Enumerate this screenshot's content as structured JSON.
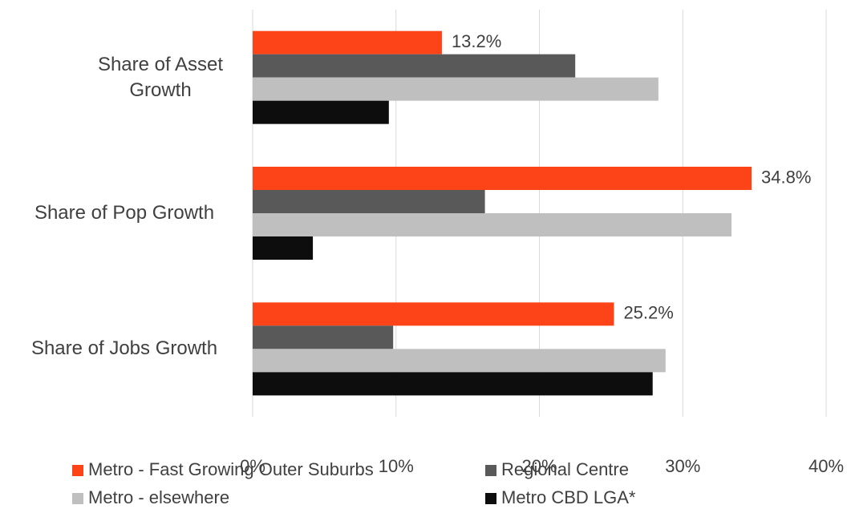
{
  "chart_data": {
    "type": "hbar",
    "categories": [
      "Share of Asset Growth",
      "Share of Pop Growth",
      "Share of Jobs Growth"
    ],
    "series": [
      {
        "name": "Metro - Fast Growing Outer Suburbs",
        "color": "#fc4418",
        "values": [
          13.2,
          34.8,
          25.2
        ],
        "value_labels": [
          "13.2%",
          "34.8%",
          "25.2%"
        ]
      },
      {
        "name": "Regional Centre",
        "color": "#595959",
        "values": [
          22.5,
          16.2,
          9.8
        ]
      },
      {
        "name": "Metro - elsewhere",
        "color": "#bfbfbf",
        "values": [
          28.3,
          33.4,
          28.8
        ]
      },
      {
        "name": "Metro CBD LGA*",
        "color": "#0d0d0d",
        "values": [
          9.5,
          4.2,
          27.9
        ]
      }
    ],
    "xlim": [
      0,
      40
    ],
    "xticks": [
      {
        "value": 0,
        "label": "0%"
      },
      {
        "value": 10,
        "label": "10%"
      },
      {
        "value": 20,
        "label": "20%"
      },
      {
        "value": 30,
        "label": "30%"
      },
      {
        "value": 40,
        "label": "40%"
      }
    ],
    "grid": true
  }
}
